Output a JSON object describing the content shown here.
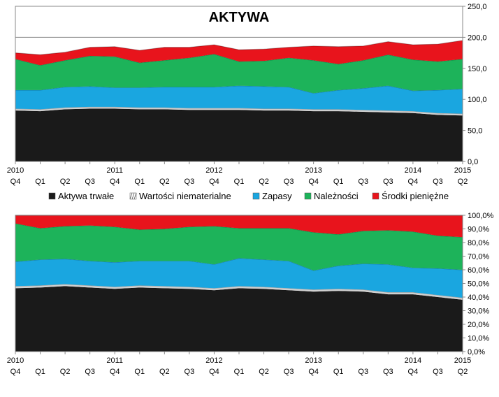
{
  "chart_data": [
    {
      "type": "area",
      "stacked": true,
      "title": "AKTYWA",
      "x": [
        "2010 Q4",
        "Q1",
        "Q2",
        "Q3",
        "2011 Q4",
        "Q1",
        "Q2",
        "Q3",
        "2012 Q4",
        "Q1",
        "Q2",
        "Q3",
        "2013 Q4",
        "Q1",
        "Q3",
        "Q3",
        "2014 Q4",
        "Q3",
        "2015 Q2"
      ],
      "x_tick_top": [
        "2010",
        "",
        "",
        "",
        "2011",
        "",
        "",
        "",
        "2012",
        "",
        "",
        "",
        "2013",
        "",
        "",
        "",
        "2014",
        "",
        "2015"
      ],
      "x_tick_bottom": [
        "Q4",
        "Q1",
        "Q2",
        "Q3",
        "Q4",
        "Q1",
        "Q2",
        "Q3",
        "Q4",
        "Q1",
        "Q2",
        "Q3",
        "Q4",
        "Q1",
        "Q3",
        "Q3",
        "Q4",
        "Q3",
        "Q2"
      ],
      "ylim": [
        0,
        250
      ],
      "y_ticks": [
        "0,0",
        "50,0",
        "100,0",
        "150,0",
        "200,0",
        "250,0"
      ],
      "reference_line": 200,
      "series": [
        {
          "name": "Aktywa trwałe",
          "color": "#1a1a1a",
          "values": [
            82,
            81,
            84,
            85,
            85,
            84,
            84,
            83,
            83,
            83,
            82,
            82,
            81,
            81,
            80,
            79,
            78,
            75,
            74
          ]
        },
        {
          "name": "Wartości niematerialne",
          "color": "#d0d0d0",
          "values": [
            3,
            3,
            3,
            3,
            3,
            3,
            3,
            3,
            3,
            3,
            3,
            3,
            3,
            3,
            3,
            3,
            3,
            3,
            3
          ]
        },
        {
          "name": "Zapasy",
          "color": "#1aa6e0",
          "values": [
            30,
            31,
            33,
            33,
            31,
            32,
            33,
            34,
            34,
            36,
            36,
            35,
            26,
            31,
            35,
            40,
            33,
            37,
            40
          ]
        },
        {
          "name": "Należności",
          "color": "#1db35a",
          "values": [
            50,
            40,
            43,
            49,
            50,
            40,
            43,
            47,
            53,
            39,
            41,
            47,
            53,
            42,
            45,
            50,
            50,
            46,
            48
          ]
        },
        {
          "name": "Środki pieniężne",
          "color": "#e8141c",
          "values": [
            10,
            17,
            13,
            14,
            16,
            20,
            21,
            17,
            15,
            19,
            19,
            17,
            23,
            28,
            23,
            21,
            24,
            28,
            30
          ]
        }
      ]
    },
    {
      "type": "area",
      "stacked": true,
      "percent": true,
      "x": [
        "2010 Q4",
        "Q1",
        "Q2",
        "Q3",
        "2011 Q4",
        "Q1",
        "Q2",
        "Q3",
        "2012 Q4",
        "Q1",
        "Q2",
        "Q3",
        "2013 Q4",
        "Q1",
        "Q3",
        "Q3",
        "2014 Q4",
        "Q3",
        "2015 Q2"
      ],
      "x_tick_top": [
        "2010",
        "",
        "",
        "",
        "2011",
        "",
        "",
        "",
        "2012",
        "",
        "",
        "",
        "2013",
        "",
        "",
        "",
        "2014",
        "",
        "2015"
      ],
      "x_tick_bottom": [
        "Q4",
        "Q1",
        "Q2",
        "Q3",
        "Q4",
        "Q1",
        "Q2",
        "Q3",
        "Q4",
        "Q1",
        "Q2",
        "Q3",
        "Q4",
        "Q1",
        "Q3",
        "Q3",
        "Q4",
        "Q3",
        "Q2"
      ],
      "ylim": [
        0,
        100
      ],
      "y_ticks": [
        "0,0%",
        "10,0%",
        "20,0%",
        "30,0%",
        "40,0%",
        "50,0%",
        "60,0%",
        "70,0%",
        "80,0%",
        "90,0%",
        "100,0%"
      ],
      "series": [
        {
          "name": "Aktywa trwałe",
          "color": "#1a1a1a",
          "values": [
            46.5,
            47,
            48,
            47,
            46,
            47,
            46.5,
            46,
            45,
            46.5,
            46,
            45,
            44,
            44.5,
            44,
            42,
            42,
            40,
            38
          ]
        },
        {
          "name": "Wartości niematerialne",
          "color": "#d0d0d0",
          "values": [
            1.5,
            1.5,
            1.5,
            1.5,
            1.5,
            1.5,
            1.5,
            1.5,
            1.5,
            1.5,
            1.5,
            1.5,
            1.5,
            1.5,
            1.5,
            1.5,
            1.5,
            1.5,
            1.5
          ]
        },
        {
          "name": "Zapasy",
          "color": "#1aa6e0",
          "values": [
            18,
            19,
            18.5,
            18,
            18,
            18,
            18.5,
            19,
            17.5,
            20.5,
            20,
            20,
            14,
            17,
            19,
            20.5,
            18,
            19.5,
            20.5
          ]
        },
        {
          "name": "Należności",
          "color": "#1db35a",
          "values": [
            28,
            23,
            24,
            26,
            26,
            23,
            23.5,
            25,
            28,
            22,
            23,
            24,
            28,
            23,
            24,
            25,
            26.5,
            24,
            24
          ]
        },
        {
          "name": "Środki pieniężne",
          "color": "#e8141c",
          "values": [
            6,
            9.5,
            8,
            7.5,
            8.5,
            10.5,
            10,
            8.5,
            8,
            9.5,
            9.5,
            9.5,
            12.5,
            14,
            11.5,
            11,
            12,
            15,
            16
          ]
        }
      ]
    }
  ],
  "legend": {
    "items": [
      {
        "label": "Aktywa trwałe",
        "color": "#1a1a1a"
      },
      {
        "label": "Wartości niematerialne",
        "color": "#d0d0d0"
      },
      {
        "label": "Zapasy",
        "color": "#1aa6e0"
      },
      {
        "label": "Należności",
        "color": "#1db35a"
      },
      {
        "label": "Środki pieniężne",
        "color": "#e8141c"
      }
    ]
  }
}
